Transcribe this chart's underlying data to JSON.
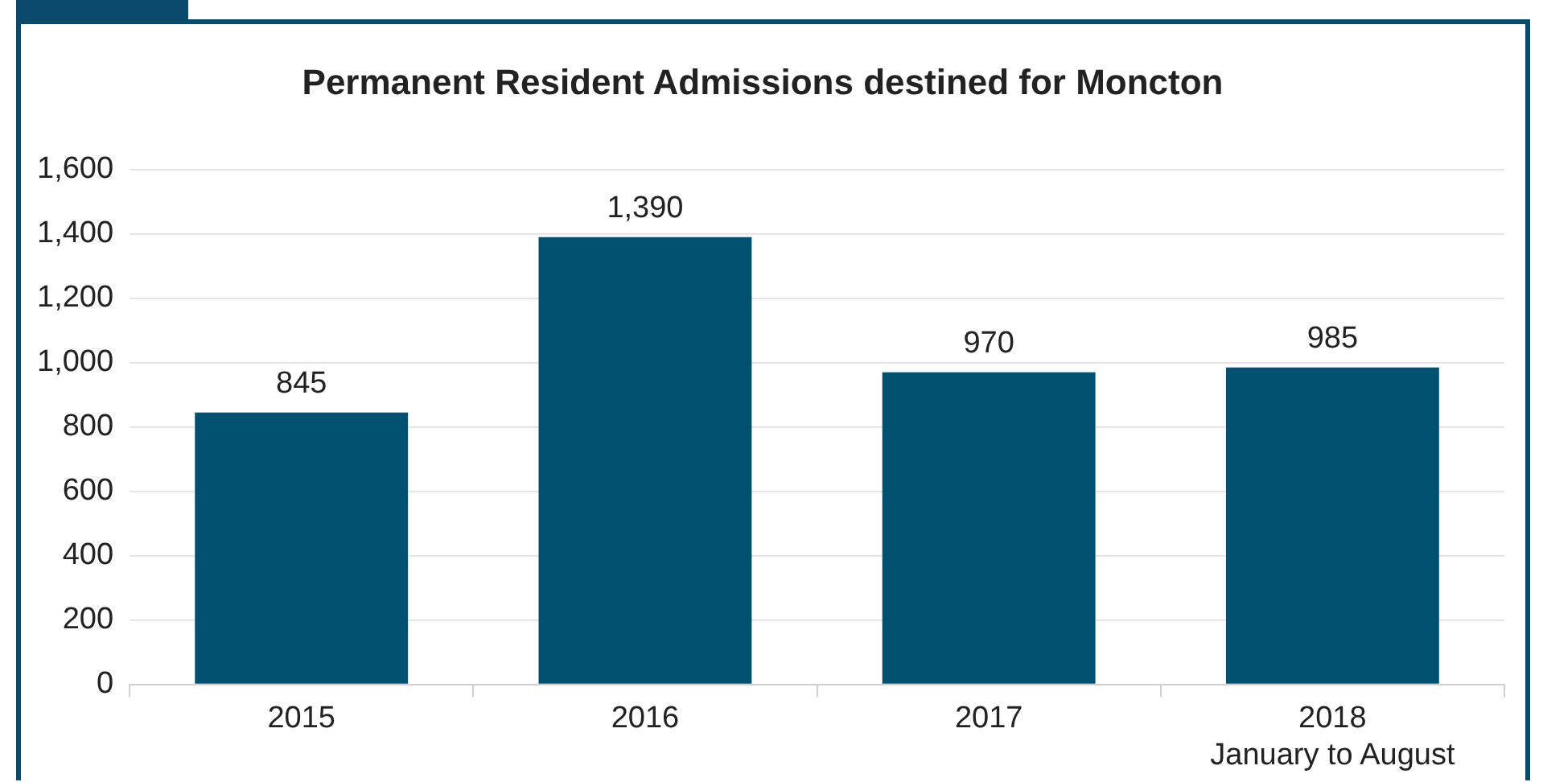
{
  "chart_data": {
    "type": "bar",
    "title": "Permanent Resident Admissions destined for Moncton",
    "categories": [
      "2015",
      "2016",
      "2017",
      "2018\nJanuary to August"
    ],
    "values": [
      845,
      1390,
      970,
      985
    ],
    "color": "#02506f",
    "value_labels": [
      "845",
      "1,390",
      "970",
      "985"
    ],
    "ylim": [
      0,
      1600
    ],
    "yticks": [
      0,
      200,
      400,
      600,
      800,
      {
        "value": 1000,
        "label": "1,000"
      },
      {
        "value": 1200,
        "label": "1,200"
      },
      {
        "value": 1400,
        "label": "1,400"
      },
      {
        "value": 1600,
        "label": "1,600"
      }
    ],
    "grid": "y",
    "legend": false
  }
}
